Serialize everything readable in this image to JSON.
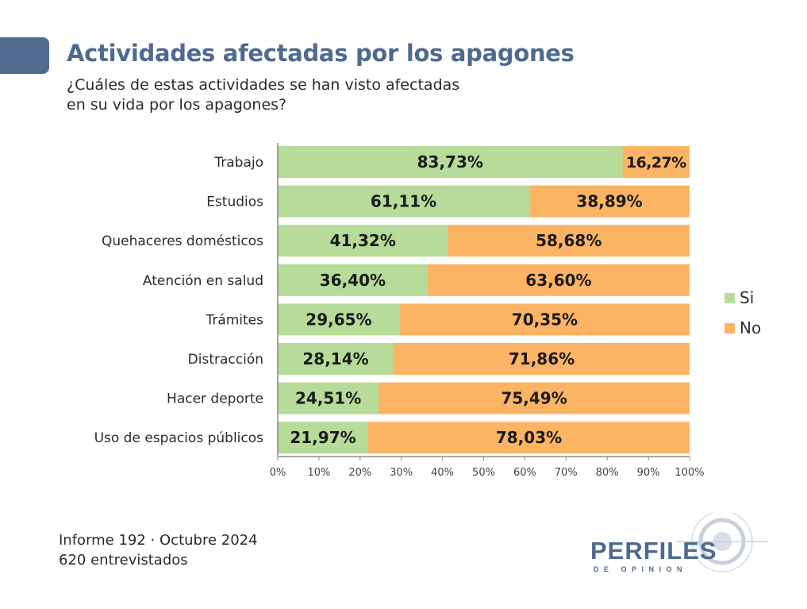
{
  "header": {
    "title": "Actividades afectadas por los apagones",
    "subtitle_line1": "¿Cuáles de estas actividades se han visto afectadas",
    "subtitle_line2": "en su vida por los apagones?"
  },
  "colors": {
    "si": "#b7db99",
    "no": "#fbb464",
    "accent": "#4f6a8f"
  },
  "chart_data": {
    "type": "bar",
    "orientation": "horizontal",
    "stacked": "percent",
    "title": "Actividades afectadas por los apagones",
    "categories": [
      "Trabajo",
      "Estudios",
      "Quehaceres domésticos",
      "Atención en salud",
      "Trámites",
      "Distracción",
      "Hacer deporte",
      "Uso de espacios públicos"
    ],
    "series": [
      {
        "name": "Si",
        "values": [
          83.73,
          61.11,
          41.32,
          36.4,
          29.65,
          28.14,
          24.51,
          21.97
        ],
        "labels": [
          "83,73%",
          "61,11%",
          "41,32%",
          "36,40%",
          "29,65%",
          "28,14%",
          "24,51%",
          "21,97%"
        ]
      },
      {
        "name": "No",
        "values": [
          16.27,
          38.89,
          58.68,
          63.6,
          70.35,
          71.86,
          75.49,
          78.03
        ],
        "labels": [
          "16,27%",
          "38,89%",
          "58,68%",
          "63,60%",
          "70,35%",
          "71,86%",
          "75,49%",
          "78,03%"
        ]
      }
    ],
    "x_ticks": [
      "0%",
      "10%",
      "20%",
      "30%",
      "40%",
      "50%",
      "60%",
      "70%",
      "80%",
      "90%",
      "100%"
    ],
    "xlim": [
      0,
      100
    ],
    "grid": false,
    "legend_position": "right"
  },
  "legend": {
    "si_label": "Si",
    "no_label": "No"
  },
  "footer": {
    "line1": "Informe 192 · Octubre 2024",
    "line2": "620 entrevistados"
  },
  "logo": {
    "word": "PERFILES",
    "sub": "DE OPINION"
  }
}
